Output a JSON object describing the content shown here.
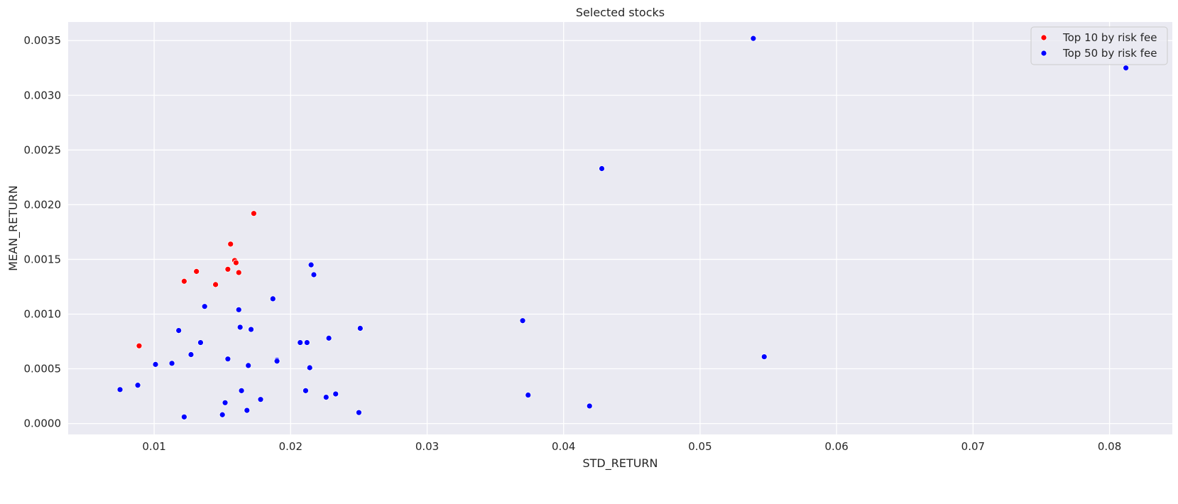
{
  "chart_data": {
    "type": "scatter",
    "title": "Selected stocks",
    "xlabel": "STD_RETURN",
    "ylabel": "MEAN_RETURN",
    "xlim": [
      0.0037,
      0.0846
    ],
    "ylim": [
      -0.0001,
      0.00367
    ],
    "x_ticks": [
      "0.01",
      "0.02",
      "0.03",
      "0.04",
      "0.05",
      "0.06",
      "0.07",
      "0.08"
    ],
    "x_tick_values": [
      0.01,
      0.02,
      0.03,
      0.04,
      0.05,
      0.06,
      0.07,
      0.08
    ],
    "y_ticks": [
      "0.0000",
      "0.0005",
      "0.0010",
      "0.0015",
      "0.0020",
      "0.0025",
      "0.0030",
      "0.0035"
    ],
    "y_tick_values": [
      0,
      0.0005,
      0.001,
      0.0015,
      0.002,
      0.0025,
      0.003,
      0.0035
    ],
    "grid": true,
    "legend_position": "top-right",
    "series": [
      {
        "name": "Top 50 by risk fee",
        "color": "#0000ff",
        "x": [
          0.0539,
          0.0812,
          0.0428,
          0.0215,
          0.0217,
          0.0187,
          0.0137,
          0.0162,
          0.037,
          0.0251,
          0.0163,
          0.0171,
          0.0118,
          0.0228,
          0.0207,
          0.0212,
          0.0134,
          0.0127,
          0.0547,
          0.0154,
          0.019,
          0.019,
          0.0113,
          0.0101,
          0.0169,
          0.0214,
          0.0088,
          0.0075,
          0.0164,
          0.0211,
          0.0233,
          0.0374,
          0.0226,
          0.0178,
          0.0152,
          0.0419,
          0.0168,
          0.025,
          0.015,
          0.0122
        ],
        "y": [
          0.00352,
          0.00325,
          0.00233,
          0.00145,
          0.00136,
          0.00114,
          0.00107,
          0.00104,
          0.00094,
          0.00087,
          0.00088,
          0.00086,
          0.00085,
          0.00078,
          0.00074,
          0.00074,
          0.00074,
          0.00063,
          0.00061,
          0.00059,
          0.00058,
          0.00057,
          0.00055,
          0.00054,
          0.00053,
          0.00051,
          0.00035,
          0.00031,
          0.0003,
          0.0003,
          0.00027,
          0.00026,
          0.00024,
          0.00022,
          0.00019,
          0.00016,
          0.00012,
          0.0001,
          8e-05,
          6e-05
        ]
      },
      {
        "name": "Top 10 by risk fee",
        "color": "#ff0000",
        "x": [
          0.0173,
          0.0156,
          0.0159,
          0.016,
          0.0154,
          0.0131,
          0.0162,
          0.0122,
          0.0145,
          0.0089
        ],
        "y": [
          0.00192,
          0.00164,
          0.00149,
          0.00147,
          0.00141,
          0.00139,
          0.00138,
          0.0013,
          0.00127,
          0.00071
        ]
      }
    ],
    "legend_order": [
      1,
      0
    ]
  }
}
